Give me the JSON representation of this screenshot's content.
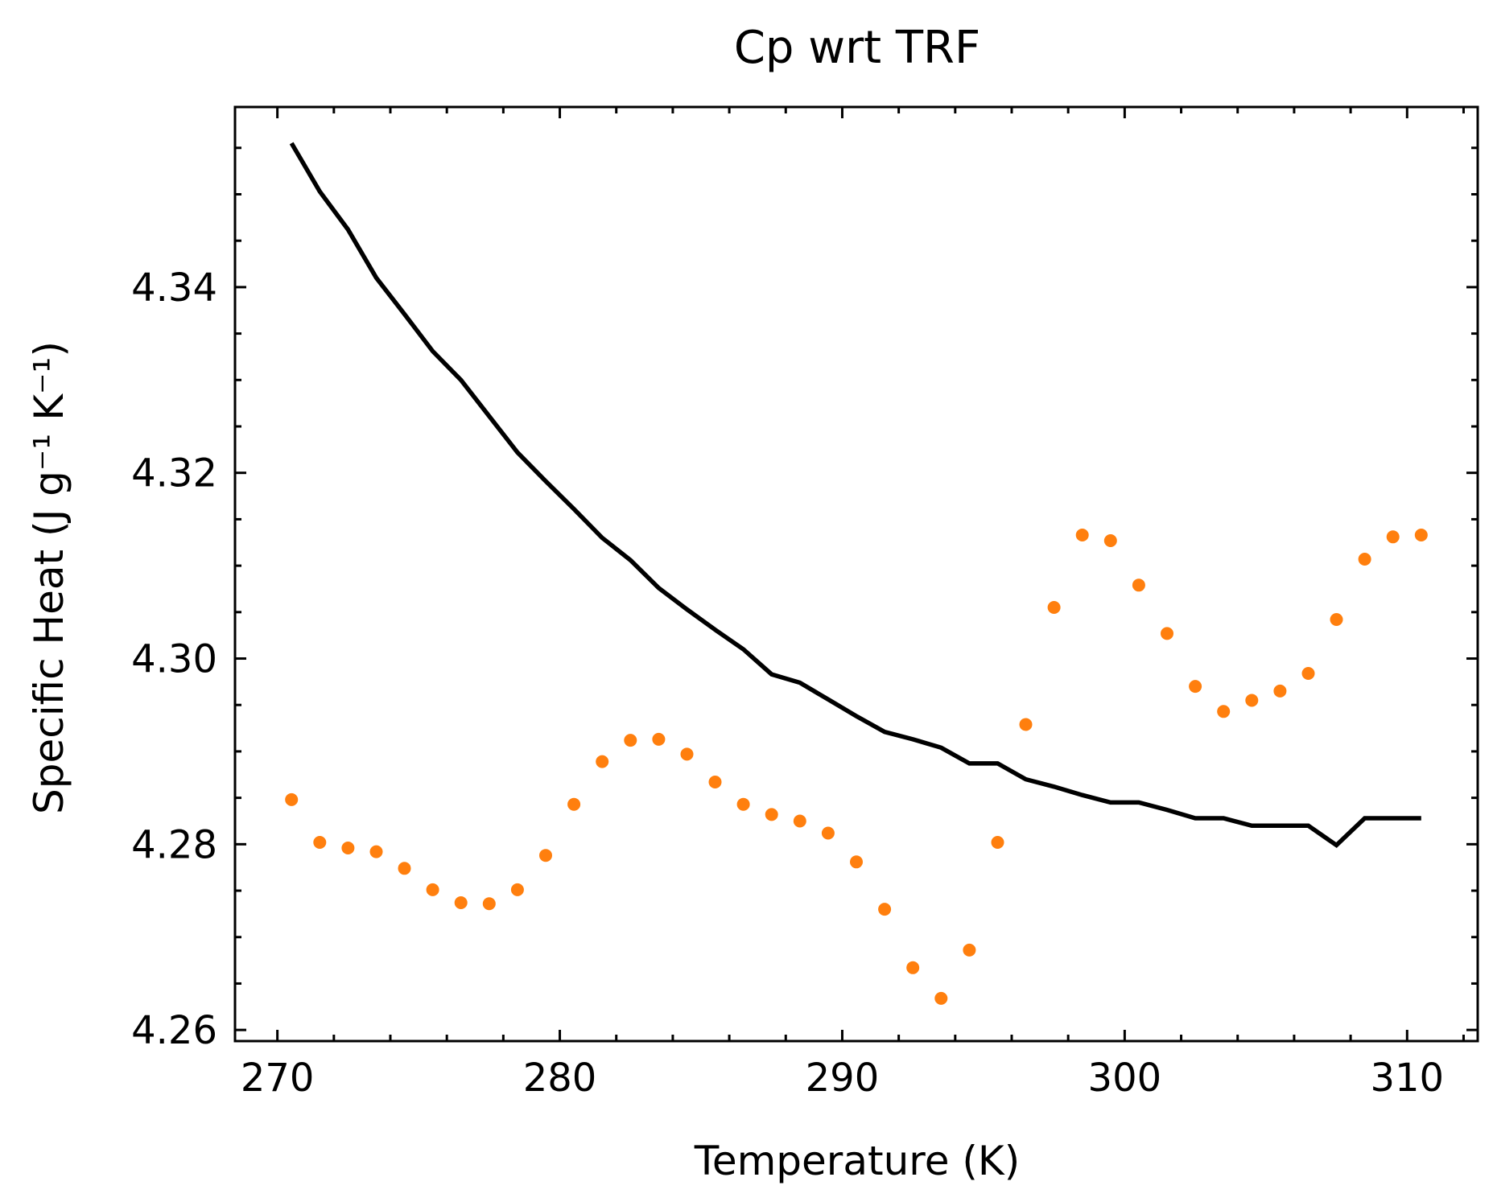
{
  "chart_data": {
    "type": "line",
    "title": "Cp wrt TRF",
    "xlabel": "Temperature (K)",
    "ylabel": "Specific Heat (J g⁻¹ K⁻¹)",
    "xlim": [
      268.5,
      312.5
    ],
    "ylim": [
      4.2588,
      4.3594
    ],
    "xticks": [
      270,
      280,
      290,
      300,
      310
    ],
    "xtick_labels": [
      "270",
      "280",
      "290",
      "300",
      "310"
    ],
    "yticks": [
      4.26,
      4.28,
      4.3,
      4.32,
      4.34
    ],
    "ytick_labels": [
      "4.26",
      "4.28",
      "4.30",
      "4.32",
      "4.34"
    ],
    "x_minor_step": 2,
    "y_minor_step": 0.005,
    "grid": false,
    "legend": "none",
    "series": [
      {
        "kind": "line",
        "color": "#000000",
        "x": [
          270.5,
          271.5,
          272.5,
          273.5,
          274.5,
          275.5,
          276.5,
          277.5,
          278.5,
          279.5,
          280.5,
          281.5,
          282.5,
          283.5,
          284.5,
          285.5,
          286.5,
          287.5,
          288.5,
          289.5,
          290.5,
          291.5,
          292.5,
          293.5,
          294.5,
          295.5,
          296.5,
          297.5,
          298.5,
          299.5,
          300.5,
          301.5,
          302.5,
          303.5,
          304.5,
          305.5,
          306.5,
          307.5,
          308.5,
          309.5,
          310.5
        ],
        "y": [
          4.3555,
          4.3503,
          4.3462,
          4.341,
          4.3371,
          4.3331,
          4.33,
          4.3261,
          4.3222,
          4.3191,
          4.3161,
          4.313,
          4.3106,
          4.3076,
          4.3053,
          4.3031,
          4.301,
          4.2983,
          4.2974,
          4.2956,
          4.2938,
          4.2921,
          4.2913,
          4.2904,
          4.2887,
          4.2887,
          4.287,
          4.2862,
          4.2853,
          4.2845,
          4.2845,
          4.2837,
          4.2828,
          4.2828,
          4.282,
          4.282,
          4.282,
          4.2799,
          4.2828,
          4.2828,
          4.2828
        ]
      },
      {
        "kind": "scatter",
        "color": "#ff7f0e",
        "x": [
          270.5,
          271.5,
          272.5,
          273.5,
          274.5,
          275.5,
          276.5,
          277.5,
          278.5,
          279.5,
          280.5,
          281.5,
          282.5,
          283.5,
          284.5,
          285.5,
          286.5,
          287.5,
          288.5,
          289.5,
          290.5,
          291.5,
          292.5,
          293.5,
          294.5,
          295.5,
          296.5,
          297.5,
          298.5,
          299.5,
          300.5,
          301.5,
          302.5,
          303.5,
          304.5,
          305.5,
          306.5,
          307.5,
          308.5,
          309.5,
          310.5
        ],
        "y": [
          4.2848,
          4.2802,
          4.2796,
          4.2792,
          4.2774,
          4.2751,
          4.2737,
          4.2736,
          4.2751,
          4.2788,
          4.2843,
          4.2889,
          4.2912,
          4.2913,
          4.2897,
          4.2867,
          4.2843,
          4.2832,
          4.2825,
          4.2812,
          4.2781,
          4.273,
          4.2667,
          4.2634,
          4.2686,
          4.2802,
          4.2929,
          4.3055,
          4.3133,
          4.3127,
          4.3079,
          4.3027,
          4.297,
          4.2943,
          4.2955,
          4.2965,
          4.2984,
          4.3042,
          4.3107,
          4.3131,
          4.3133
        ]
      }
    ]
  }
}
